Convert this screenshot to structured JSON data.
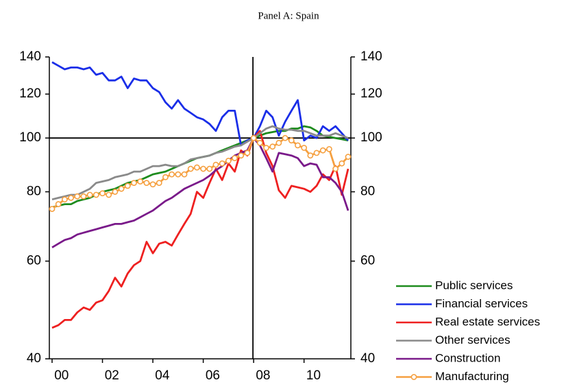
{
  "chart_data": {
    "type": "line",
    "title": "Panel A: Spain",
    "categories": [
      "00",
      null,
      null,
      null,
      null,
      null,
      null,
      null,
      "02",
      null,
      null,
      null,
      null,
      null,
      null,
      null,
      "04",
      null,
      null,
      null,
      null,
      null,
      null,
      null,
      "06",
      null,
      null,
      null,
      null,
      null,
      null,
      null,
      "08",
      null,
      null,
      null,
      null,
      null,
      null,
      null,
      "10",
      null,
      null,
      null,
      null,
      null,
      null,
      null
    ],
    "ylim": [
      40,
      140
    ],
    "yticks": [
      40,
      60,
      80,
      100,
      120,
      140
    ],
    "log_scale": true,
    "hline": 100,
    "vline": 32,
    "legend": "bottom-right",
    "series": [
      {
        "name": "Public services",
        "color": "#1e8c1e",
        "values": [
          75,
          75.5,
          76,
          76,
          77,
          77.5,
          78,
          79,
          80,
          80.5,
          81,
          82,
          83,
          83.5,
          84,
          85,
          86,
          86.5,
          87,
          88,
          89,
          90,
          91,
          92,
          92.5,
          93,
          94,
          95,
          96,
          97,
          98,
          99,
          100,
          101,
          102,
          102.5,
          103,
          103,
          104,
          104,
          105,
          104.5,
          103,
          101,
          100.5,
          100,
          99.5,
          99
        ]
      },
      {
        "name": "Financial services",
        "color": "#1a2ee8",
        "values": [
          137,
          135,
          133,
          134,
          134,
          133,
          134,
          130,
          131,
          127,
          127,
          129,
          123,
          128,
          127,
          127,
          123,
          121,
          116,
          113,
          117,
          113,
          111,
          109,
          108,
          106,
          103,
          109,
          112,
          112,
          97,
          99,
          100,
          105,
          112,
          109,
          101,
          107,
          112,
          117,
          99,
          101,
          100,
          105,
          103,
          105,
          102,
          99
        ]
      },
      {
        "name": "Real estate services",
        "color": "#ee2020",
        "values": [
          45.5,
          46,
          47,
          47,
          48.5,
          49.5,
          49,
          50.5,
          51,
          53,
          56,
          54,
          57,
          59,
          60,
          65,
          62,
          64.5,
          65,
          64,
          67,
          70,
          73,
          80,
          78,
          83,
          88,
          84,
          90,
          87,
          95,
          93,
          100,
          103,
          94,
          89,
          80.5,
          78,
          82,
          81.5,
          81,
          80,
          82,
          86,
          84,
          89,
          79,
          88
        ]
      },
      {
        "name": "Other services",
        "color": "#8a8a8a",
        "values": [
          77.5,
          78,
          78.5,
          79,
          79,
          80,
          81,
          83,
          83.5,
          84,
          85,
          85.5,
          86,
          87,
          87,
          88,
          89,
          89,
          89.5,
          89,
          89,
          90,
          91.5,
          92,
          92.5,
          93,
          94,
          94.5,
          95.5,
          96.5,
          97,
          98.5,
          100,
          102,
          104,
          105,
          104,
          103.5,
          103.5,
          103,
          103,
          102,
          101,
          101,
          101,
          102,
          101,
          100
        ]
      },
      {
        "name": "Construction",
        "color": "#7a1a8a",
        "values": [
          63.5,
          64.5,
          65.5,
          66,
          67,
          67.5,
          68,
          68.5,
          69,
          69.5,
          70,
          70,
          70.5,
          71,
          72,
          73,
          74,
          75.5,
          77,
          78,
          79.5,
          81,
          82,
          83,
          84,
          85.5,
          87.5,
          89,
          91,
          93,
          94,
          95,
          100,
          97,
          92,
          87,
          94,
          93.5,
          93,
          92,
          89,
          90,
          89.5,
          85,
          85,
          83,
          80,
          74
        ]
      },
      {
        "name": "Manufacturing",
        "color": "#f5a040",
        "marker": "circle",
        "values": [
          74.5,
          76,
          77.5,
          78,
          78.5,
          78.5,
          79,
          79,
          79.5,
          79,
          80,
          81,
          82,
          83,
          83.5,
          83,
          82.5,
          83,
          85,
          86,
          86,
          86,
          88,
          88.5,
          88,
          88,
          89.5,
          90,
          91,
          92,
          93,
          94,
          100,
          98,
          96,
          96.5,
          98,
          100,
          99,
          97,
          96,
          93,
          94,
          95,
          95.5,
          88,
          90,
          92.5
        ]
      }
    ]
  }
}
